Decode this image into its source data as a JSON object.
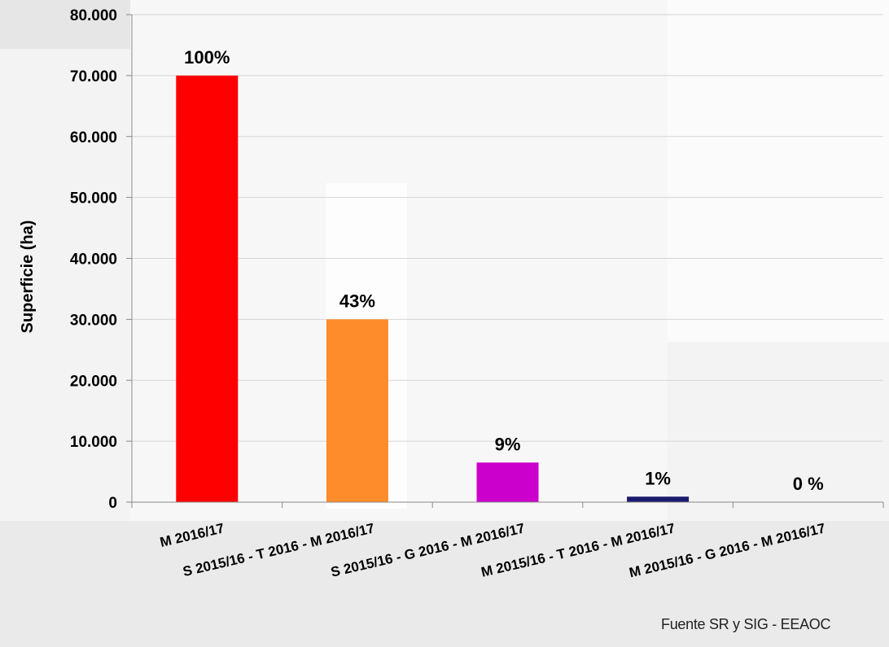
{
  "chart_data": {
    "type": "bar",
    "ylabel": "Superficie (ha)",
    "ylim": [
      0,
      80000
    ],
    "yticks": [
      0,
      10000,
      20000,
      30000,
      40000,
      50000,
      60000,
      70000,
      80000
    ],
    "ytick_labels": [
      "0",
      "10.000",
      "20.000",
      "30.000",
      "40.000",
      "50.000",
      "60.000",
      "70.000",
      "80.000"
    ],
    "categories": [
      "M 2016/17",
      "S 2015/16 - T 2016 - M 2016/17",
      "S 2015/16 - G 2016 - M 2016/17",
      "M 2015/16 - T 2016 - M 2016/17",
      "M 2015/16 - G 2016 - M 2016/17"
    ],
    "values": [
      70000,
      30000,
      6500,
      900,
      0
    ],
    "data_labels": [
      "100%",
      "43%",
      "9%",
      "1%",
      "0 %"
    ],
    "colors": [
      "#ff0000",
      "#ff8c2a",
      "#cc00cc",
      "#1a1a6e",
      "#999999"
    ],
    "grid": true,
    "legend": "none"
  },
  "source": "Fuente SR y SIG - EEAOC"
}
